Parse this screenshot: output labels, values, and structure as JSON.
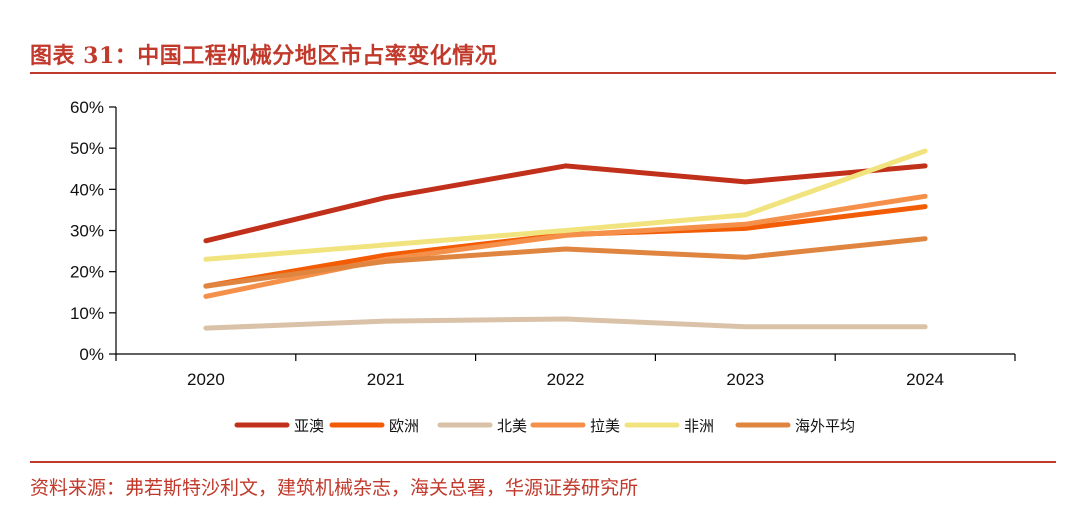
{
  "title": "图表 31：中国工程机械分地区市占率变化情况",
  "source": "资料来源：弗若斯特沙利文，建筑机械杂志，海关总署，华源证券研究所",
  "chart_data": {
    "type": "line",
    "title": "图表 31：中国工程机械分地区市占率变化情况",
    "xlabel": "",
    "ylabel": "",
    "categories": [
      "2020",
      "2021",
      "2022",
      "2023",
      "2024"
    ],
    "ylim": [
      0,
      60
    ],
    "yticks": [
      0,
      10,
      20,
      30,
      40,
      50,
      60
    ],
    "ytick_labels": [
      "0%",
      "10%",
      "20%",
      "30%",
      "40%",
      "50%",
      "60%"
    ],
    "legend_position": "bottom",
    "series": [
      {
        "name": "亚澳",
        "color": "#c0301a",
        "values": [
          27.5,
          38.0,
          45.7,
          41.8,
          45.7
        ]
      },
      {
        "name": "欧洲",
        "color": "#f25c05",
        "values": [
          16.5,
          24.0,
          29.0,
          30.5,
          35.8
        ]
      },
      {
        "name": "北美",
        "color": "#d9c2a7",
        "values": [
          6.3,
          8.0,
          8.5,
          6.6,
          6.6
        ]
      },
      {
        "name": "拉美",
        "color": "#f5904a",
        "values": [
          14.0,
          23.0,
          28.8,
          31.5,
          38.3
        ]
      },
      {
        "name": "非洲",
        "color": "#f1e47e",
        "values": [
          23.0,
          26.5,
          30.0,
          33.8,
          49.3
        ]
      },
      {
        "name": "海外平均",
        "color": "#df8540",
        "values": [
          16.5,
          22.5,
          25.5,
          23.5,
          28.0
        ]
      }
    ]
  }
}
